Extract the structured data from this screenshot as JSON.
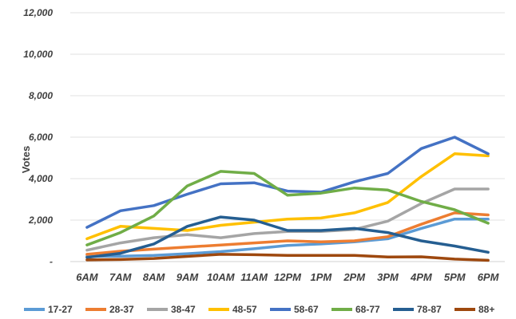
{
  "chart_data": {
    "type": "line",
    "title": "",
    "xlabel": "",
    "ylabel": "Votes",
    "categories": [
      "6AM",
      "7AM",
      "8AM",
      "9AM",
      "10AM",
      "11AM",
      "12PM",
      "1PM",
      "2PM",
      "3PM",
      "4PM",
      "5PM",
      "6PM"
    ],
    "ylim": [
      0,
      12000
    ],
    "y_ticks": [
      {
        "value": 0,
        "label": "-"
      },
      {
        "value": 2000,
        "label": "2,000"
      },
      {
        "value": 4000,
        "label": "4,000"
      },
      {
        "value": 6000,
        "label": "6,000"
      },
      {
        "value": 8000,
        "label": "8,000"
      },
      {
        "value": 10000,
        "label": "10,000"
      },
      {
        "value": 12000,
        "label": "12,000"
      }
    ],
    "grid": true,
    "legend_position": "bottom",
    "series": [
      {
        "name": "17-27",
        "color": "#5b9bd5",
        "values": [
          250,
          260,
          300,
          380,
          480,
          620,
          780,
          850,
          950,
          1100,
          1600,
          2050,
          2050
        ]
      },
      {
        "name": "28-37",
        "color": "#ed7d31",
        "values": [
          350,
          500,
          600,
          700,
          800,
          900,
          1000,
          950,
          1000,
          1200,
          1800,
          2350,
          2250
        ]
      },
      {
        "name": "38-47",
        "color": "#a5a5a5",
        "values": [
          550,
          900,
          1150,
          1300,
          1150,
          1350,
          1450,
          1450,
          1550,
          1950,
          2800,
          3500,
          3500
        ]
      },
      {
        "name": "48-57",
        "color": "#ffc000",
        "values": [
          1100,
          1700,
          1600,
          1500,
          1750,
          1900,
          2050,
          2100,
          2350,
          2850,
          4100,
          5200,
          5100
        ]
      },
      {
        "name": "58-67",
        "color": "#4472c4",
        "values": [
          1650,
          2450,
          2700,
          3250,
          3750,
          3800,
          3400,
          3350,
          3850,
          4250,
          5450,
          6000,
          5200
        ]
      },
      {
        "name": "68-77",
        "color": "#70ad47",
        "values": [
          800,
          1400,
          2200,
          3650,
          4350,
          4250,
          3200,
          3300,
          3550,
          3450,
          2900,
          2500,
          1850
        ]
      },
      {
        "name": "78-87",
        "color": "#255e91",
        "values": [
          200,
          400,
          850,
          1700,
          2150,
          2000,
          1500,
          1500,
          1600,
          1400,
          1000,
          750,
          450
        ]
      },
      {
        "name": "88+",
        "color": "#9e480e",
        "values": [
          80,
          100,
          150,
          250,
          350,
          330,
          300,
          300,
          300,
          220,
          230,
          120,
          60
        ]
      }
    ]
  }
}
